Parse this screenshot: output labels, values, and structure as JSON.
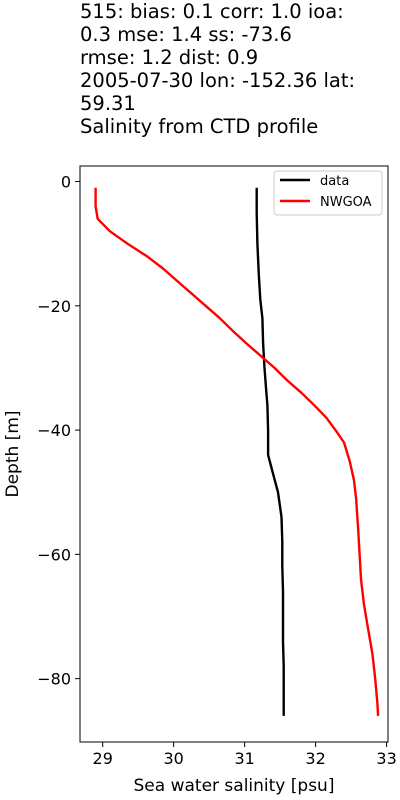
{
  "title_lines": [
    "515: bias: 0.1  corr: 1.0  ioa:",
    "0.3  mse: 1.4  ss: -73.6",
    "rmse: 1.2  dist: 0.9",
    "2005-07-30 lon: -152.36 lat:",
    "59.31",
    "Salinity from CTD profile"
  ],
  "chart_data": {
    "type": "line",
    "title": "515: bias: 0.1  corr: 1.0  ioa: 0.3  mse: 1.4  ss: -73.6 rmse: 1.2  dist: 0.9 2005-07-30 lon: -152.36 lat: 59.31 Salinity from CTD profile",
    "xlabel": "Sea water salinity [psu]",
    "ylabel": "Depth [m]",
    "xlim": [
      28.68,
      33.02
    ],
    "ylim": [
      -90.2,
      2.5
    ],
    "xticks": [
      29,
      30,
      31,
      32,
      33
    ],
    "yticks": [
      0,
      -20,
      -40,
      -60,
      -80
    ],
    "grid": false,
    "legend_position": "top-right",
    "series": [
      {
        "name": "data",
        "color": "#000000",
        "points": [
          [
            31.17,
            -1
          ],
          [
            31.17,
            -5
          ],
          [
            31.18,
            -10
          ],
          [
            31.2,
            -15
          ],
          [
            31.22,
            -19
          ],
          [
            31.25,
            -22
          ],
          [
            31.26,
            -26
          ],
          [
            31.28,
            -30
          ],
          [
            31.3,
            -33
          ],
          [
            31.32,
            -36
          ],
          [
            31.33,
            -40
          ],
          [
            31.33,
            -44
          ],
          [
            31.4,
            -47
          ],
          [
            31.47,
            -50
          ],
          [
            31.52,
            -54
          ],
          [
            31.53,
            -58
          ],
          [
            31.53,
            -62
          ],
          [
            31.54,
            -66
          ],
          [
            31.54,
            -70
          ],
          [
            31.54,
            -74
          ],
          [
            31.55,
            -78
          ],
          [
            31.55,
            -82
          ],
          [
            31.55,
            -86
          ]
        ]
      },
      {
        "name": "NWGOA",
        "color": "#ff0000",
        "points": [
          [
            28.9,
            -1
          ],
          [
            28.9,
            -4
          ],
          [
            28.93,
            -6
          ],
          [
            29.1,
            -8
          ],
          [
            29.35,
            -10
          ],
          [
            29.62,
            -12
          ],
          [
            29.85,
            -14
          ],
          [
            30.05,
            -16
          ],
          [
            30.25,
            -18
          ],
          [
            30.45,
            -20
          ],
          [
            30.65,
            -22
          ],
          [
            30.83,
            -24
          ],
          [
            31.02,
            -26
          ],
          [
            31.22,
            -28
          ],
          [
            31.42,
            -30
          ],
          [
            31.6,
            -32
          ],
          [
            31.8,
            -34
          ],
          [
            31.98,
            -36
          ],
          [
            32.15,
            -38
          ],
          [
            32.28,
            -40
          ],
          [
            32.4,
            -42
          ],
          [
            32.48,
            -45
          ],
          [
            32.54,
            -48
          ],
          [
            32.57,
            -51
          ],
          [
            32.6,
            -56
          ],
          [
            32.62,
            -60
          ],
          [
            32.64,
            -64
          ],
          [
            32.68,
            -68
          ],
          [
            32.74,
            -72
          ],
          [
            32.8,
            -76
          ],
          [
            32.84,
            -80
          ],
          [
            32.87,
            -84
          ],
          [
            32.88,
            -86
          ]
        ]
      }
    ]
  }
}
